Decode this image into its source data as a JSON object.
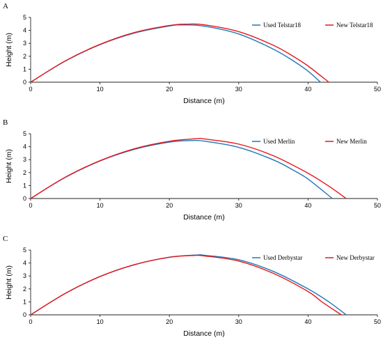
{
  "chart_data": [
    {
      "panel": "A",
      "type": "line",
      "xlabel": "Distance (m)",
      "ylabel": "Height (m)",
      "xlim": [
        0,
        50
      ],
      "ylim": [
        0,
        5
      ],
      "xticks": [
        0,
        10,
        20,
        30,
        40,
        50
      ],
      "yticks": [
        0,
        1,
        2,
        3,
        4,
        5
      ],
      "legend_position": "top-right",
      "series": [
        {
          "name": "Used Telstar18",
          "color": "#1f77b4",
          "x": [
            0,
            5,
            10,
            15,
            20,
            22,
            25,
            30,
            35,
            38,
            40,
            41.8
          ],
          "y": [
            0,
            1.63,
            2.9,
            3.8,
            4.34,
            4.42,
            4.33,
            3.72,
            2.55,
            1.6,
            0.85,
            0
          ]
        },
        {
          "name": "New Telstar18",
          "color": "#e8151b",
          "x": [
            0,
            5,
            10,
            15,
            20,
            22.5,
            25,
            30,
            35,
            38,
            40,
            43.0
          ],
          "y": [
            0,
            1.65,
            2.92,
            3.84,
            4.38,
            4.48,
            4.43,
            3.9,
            2.85,
            1.95,
            1.25,
            0
          ]
        }
      ]
    },
    {
      "panel": "B",
      "type": "line",
      "xlabel": "Distance (m)",
      "ylabel": "Height (m)",
      "xlim": [
        0,
        50
      ],
      "ylim": [
        0,
        5
      ],
      "xticks": [
        0,
        10,
        20,
        30,
        40,
        50
      ],
      "yticks": [
        0,
        1,
        2,
        3,
        4,
        5
      ],
      "legend_position": "top-right",
      "series": [
        {
          "name": "Used Merlin",
          "color": "#1f77b4",
          "x": [
            0,
            5,
            10,
            15,
            20,
            23,
            25,
            30,
            35,
            38,
            40,
            43.5
          ],
          "y": [
            0,
            1.63,
            2.9,
            3.8,
            4.35,
            4.47,
            4.43,
            3.95,
            2.98,
            2.15,
            1.5,
            0
          ]
        },
        {
          "name": "New Merlin",
          "color": "#e8151b",
          "x": [
            0,
            5,
            10,
            15,
            20,
            24,
            25,
            30,
            35,
            40,
            43,
            45.5
          ],
          "y": [
            0,
            1.65,
            2.92,
            3.85,
            4.42,
            4.62,
            4.6,
            4.2,
            3.3,
            1.95,
            0.95,
            0
          ]
        }
      ]
    },
    {
      "panel": "C",
      "type": "line",
      "xlabel": "Distance (m)",
      "ylabel": "Height (m)",
      "xlim": [
        0,
        50
      ],
      "ylim": [
        0,
        5
      ],
      "xticks": [
        0,
        10,
        20,
        30,
        40,
        50
      ],
      "yticks": [
        0,
        1,
        2,
        3,
        4,
        5
      ],
      "legend_position": "top-right",
      "series": [
        {
          "name": "Used Derbystar",
          "color": "#1f77b4",
          "x": [
            0,
            5,
            10,
            15,
            20,
            24,
            25,
            30,
            35,
            40,
            43,
            45.5
          ],
          "y": [
            0,
            1.65,
            2.95,
            3.87,
            4.45,
            4.62,
            4.6,
            4.25,
            3.35,
            2.0,
            1.0,
            0
          ]
        },
        {
          "name": "New Derbystar",
          "color": "#e8151b",
          "x": [
            0,
            5,
            10,
            15,
            20,
            23.5,
            25,
            30,
            35,
            40,
            42,
            44.8
          ],
          "y": [
            0,
            1.66,
            2.96,
            3.88,
            4.44,
            4.58,
            4.55,
            4.15,
            3.2,
            1.8,
            1.0,
            0
          ]
        }
      ]
    }
  ]
}
